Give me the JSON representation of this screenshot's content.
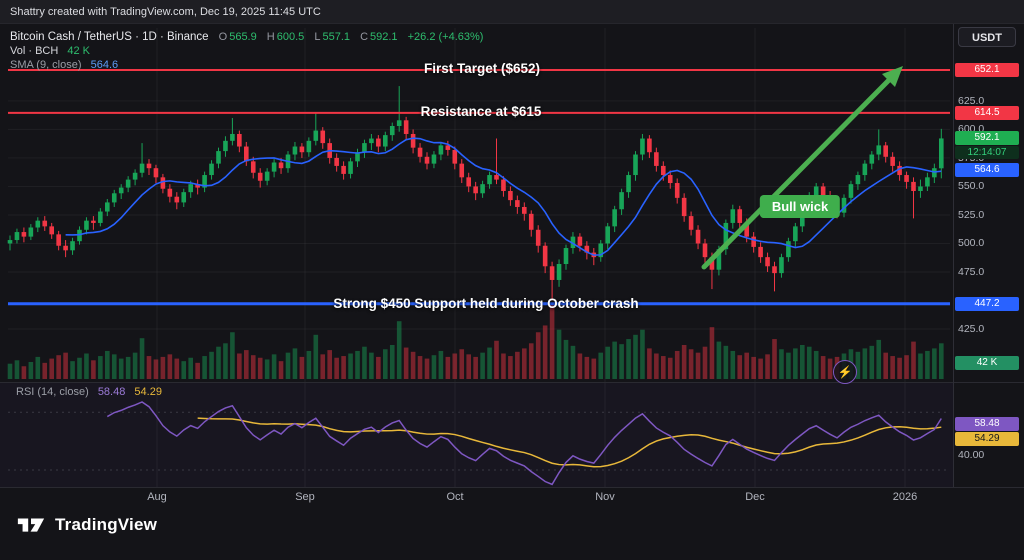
{
  "top_bar": {
    "attribution": "Shattry created with TradingView.com, Dec 19, 2025 11:45 UTC"
  },
  "header": {
    "symbol": "Bitcoin Cash / TetherUS · 1D · Binance",
    "ohlc": [
      {
        "label": "O",
        "value": "565.9"
      },
      {
        "label": "H",
        "value": "600.5"
      },
      {
        "label": "L",
        "value": "557.1"
      },
      {
        "label": "C",
        "value": "592.1"
      }
    ],
    "change": "+26.2 (+4.63%)",
    "vol_label": "Vol · BCH",
    "vol_value": "42 K",
    "sma_label": "SMA (9, close)",
    "sma_value": "564.6",
    "currency_button": "USDT"
  },
  "annotations": {
    "first_target": "First Target ($652)",
    "resistance": "Resistance at $615",
    "support": "Strong $450 Support held during October crash",
    "bull_wick": "Bull wick"
  },
  "price_scale": {
    "target_pill": "652.1",
    "resistance_pill": "614.5",
    "last_pill": "592.1",
    "countdown": "12:14:07",
    "sma_pill": "564.6",
    "support_pill": "447.2",
    "volume_pill": "42 K"
  },
  "rsi_pane": {
    "label": "RSI (14, close)",
    "rsi_value": "58.48",
    "ma_value": "54.29",
    "rsi_pill": "58.48",
    "ma_pill": "54.29",
    "scale_tick": "40.00"
  },
  "time_axis": {
    "labels": [
      "Aug",
      "Sep",
      "Oct",
      "Nov",
      "Dec",
      "2026"
    ]
  },
  "footer": {
    "brand": "TradingView"
  },
  "colors": {
    "up": "#18a558",
    "down": "#f23645",
    "sma": "#2962ff",
    "rsi": "#7e57c2",
    "rsi_ma": "#e8b83a",
    "arrow": "#4caf50",
    "level_red": "#f23645",
    "level_blue": "#2962ff"
  },
  "chart_data": {
    "type": "candlestick",
    "title": "Bitcoin Cash / TetherUS · 1D · Binance",
    "interval": "1D",
    "exchange": "Binance",
    "last": {
      "open": 565.9,
      "high": 600.5,
      "low": 557.1,
      "close": 592.1,
      "change": 26.2,
      "change_pct": 4.63
    },
    "price_axis": {
      "ticks": [
        625,
        600,
        575,
        550,
        525,
        500,
        475,
        425
      ],
      "visible_range": [
        410,
        688
      ]
    },
    "time_axis_labels": [
      "Aug",
      "Sep",
      "Oct",
      "Nov",
      "Dec",
      "2026"
    ],
    "levels": [
      {
        "price": 652.1,
        "color": "#f23645",
        "weight": 2,
        "label": "First Target ($652)"
      },
      {
        "price": 614.5,
        "color": "#f23645",
        "weight": 2,
        "label": "Resistance at $615"
      },
      {
        "price": 447.2,
        "color": "#2962ff",
        "weight": 3,
        "label": "Strong $450 Support held during October crash"
      }
    ],
    "sma": {
      "period": 9,
      "source": "close",
      "last": 564.6
    },
    "rsi": {
      "period": 14,
      "source": "close",
      "last": 58.48,
      "ma_last": 54.29,
      "bands": [
        70,
        30
      ],
      "scale_tick": 40
    },
    "volume": {
      "last_k": 42,
      "unit": "K"
    },
    "candles": [
      [
        500,
        507,
        494,
        503
      ],
      [
        503,
        513,
        500,
        510
      ],
      [
        510,
        514,
        501,
        506
      ],
      [
        506,
        517,
        503,
        514
      ],
      [
        514,
        523,
        510,
        520
      ],
      [
        520,
        524,
        511,
        515
      ],
      [
        515,
        518,
        504,
        508
      ],
      [
        508,
        511,
        494,
        498
      ],
      [
        498,
        503,
        488,
        494
      ],
      [
        494,
        505,
        490,
        502
      ],
      [
        502,
        515,
        499,
        512
      ],
      [
        512,
        523,
        508,
        520
      ],
      [
        520,
        524,
        512,
        518
      ],
      [
        518,
        531,
        515,
        528
      ],
      [
        528,
        539,
        524,
        536
      ],
      [
        536,
        547,
        532,
        544
      ],
      [
        544,
        552,
        539,
        549
      ],
      [
        549,
        559,
        545,
        556
      ],
      [
        556,
        565,
        551,
        562
      ],
      [
        562,
        588,
        558,
        570
      ],
      [
        570,
        574,
        560,
        566
      ],
      [
        566,
        569,
        553,
        558
      ],
      [
        558,
        561,
        544,
        548
      ],
      [
        548,
        552,
        536,
        541
      ],
      [
        541,
        545,
        530,
        536
      ],
      [
        536,
        548,
        532,
        545
      ],
      [
        545,
        555,
        540,
        552
      ],
      [
        552,
        556,
        543,
        549
      ],
      [
        549,
        563,
        545,
        560
      ],
      [
        560,
        573,
        556,
        570
      ],
      [
        570,
        584,
        566,
        581
      ],
      [
        581,
        594,
        576,
        590
      ],
      [
        590,
        610,
        586,
        596
      ],
      [
        596,
        599,
        580,
        585
      ],
      [
        585,
        589,
        568,
        572
      ],
      [
        572,
        576,
        557,
        562
      ],
      [
        562,
        566,
        549,
        555
      ],
      [
        555,
        566,
        551,
        563
      ],
      [
        563,
        574,
        558,
        571
      ],
      [
        571,
        575,
        561,
        566
      ],
      [
        566,
        581,
        562,
        578
      ],
      [
        578,
        589,
        573,
        585
      ],
      [
        585,
        588,
        575,
        580
      ],
      [
        580,
        593,
        576,
        590
      ],
      [
        590,
        614,
        586,
        599
      ],
      [
        599,
        602,
        583,
        588
      ],
      [
        588,
        592,
        570,
        575
      ],
      [
        575,
        579,
        563,
        568
      ],
      [
        568,
        572,
        556,
        561
      ],
      [
        561,
        575,
        557,
        572
      ],
      [
        572,
        583,
        567,
        580
      ],
      [
        580,
        591,
        575,
        588
      ],
      [
        588,
        596,
        582,
        592
      ],
      [
        592,
        595,
        580,
        585
      ],
      [
        585,
        598,
        581,
        595
      ],
      [
        595,
        606,
        590,
        603
      ],
      [
        603,
        638,
        598,
        608
      ],
      [
        608,
        611,
        591,
        596
      ],
      [
        596,
        600,
        579,
        584
      ],
      [
        584,
        588,
        571,
        576
      ],
      [
        576,
        580,
        565,
        570
      ],
      [
        570,
        581,
        566,
        578
      ],
      [
        578,
        589,
        573,
        586
      ],
      [
        586,
        590,
        577,
        582
      ],
      [
        582,
        585,
        565,
        570
      ],
      [
        570,
        574,
        553,
        558
      ],
      [
        558,
        562,
        545,
        550
      ],
      [
        550,
        554,
        538,
        544
      ],
      [
        544,
        555,
        540,
        552
      ],
      [
        552,
        563,
        548,
        560
      ],
      [
        560,
        592,
        552,
        556
      ],
      [
        556,
        559,
        541,
        546
      ],
      [
        546,
        550,
        533,
        538
      ],
      [
        538,
        542,
        526,
        532
      ],
      [
        532,
        536,
        520,
        526
      ],
      [
        526,
        529,
        506,
        512
      ],
      [
        512,
        516,
        492,
        498
      ],
      [
        498,
        501,
        474,
        480
      ],
      [
        480,
        484,
        450,
        468
      ],
      [
        468,
        486,
        462,
        482
      ],
      [
        482,
        499,
        477,
        496
      ],
      [
        496,
        510,
        491,
        506
      ],
      [
        506,
        509,
        493,
        498
      ],
      [
        498,
        502,
        486,
        492
      ],
      [
        492,
        496,
        481,
        488
      ],
      [
        488,
        503,
        484,
        500
      ],
      [
        500,
        518,
        495,
        515
      ],
      [
        515,
        533,
        510,
        530
      ],
      [
        530,
        548,
        525,
        545
      ],
      [
        545,
        563,
        540,
        560
      ],
      [
        560,
        581,
        555,
        578
      ],
      [
        578,
        596,
        573,
        592
      ],
      [
        592,
        595,
        575,
        580
      ],
      [
        580,
        584,
        563,
        568
      ],
      [
        568,
        572,
        555,
        560
      ],
      [
        560,
        564,
        548,
        553
      ],
      [
        553,
        557,
        535,
        540
      ],
      [
        540,
        544,
        519,
        524
      ],
      [
        524,
        528,
        507,
        512
      ],
      [
        512,
        516,
        495,
        500
      ],
      [
        500,
        504,
        483,
        488
      ],
      [
        488,
        492,
        460,
        477
      ],
      [
        477,
        498,
        472,
        495
      ],
      [
        495,
        521,
        490,
        518
      ],
      [
        518,
        534,
        513,
        530
      ],
      [
        530,
        533,
        513,
        518
      ],
      [
        518,
        522,
        501,
        506
      ],
      [
        506,
        510,
        492,
        497
      ],
      [
        497,
        501,
        483,
        488
      ],
      [
        488,
        492,
        475,
        480
      ],
      [
        480,
        484,
        458,
        474
      ],
      [
        474,
        491,
        470,
        488
      ],
      [
        488,
        505,
        484,
        502
      ],
      [
        502,
        518,
        497,
        515
      ],
      [
        515,
        531,
        510,
        528
      ],
      [
        528,
        545,
        523,
        542
      ],
      [
        542,
        553,
        537,
        550
      ],
      [
        550,
        553,
        537,
        542
      ],
      [
        542,
        546,
        529,
        534
      ],
      [
        534,
        538,
        522,
        527
      ],
      [
        527,
        543,
        523,
        540
      ],
      [
        540,
        555,
        535,
        552
      ],
      [
        552,
        563,
        547,
        560
      ],
      [
        560,
        573,
        555,
        570
      ],
      [
        570,
        581,
        565,
        578
      ],
      [
        578,
        600,
        573,
        586
      ],
      [
        586,
        589,
        571,
        576
      ],
      [
        576,
        580,
        563,
        568
      ],
      [
        568,
        572,
        555,
        560
      ],
      [
        560,
        563,
        548,
        554
      ],
      [
        554,
        558,
        522,
        546
      ],
      [
        546,
        556,
        540,
        550
      ],
      [
        550,
        562,
        546,
        558
      ],
      [
        558,
        570,
        553,
        566
      ],
      [
        565.9,
        600.5,
        557.1,
        592.1
      ]
    ],
    "volumes_k": [
      18,
      22,
      15,
      20,
      26,
      19,
      24,
      28,
      31,
      21,
      25,
      30,
      22,
      27,
      33,
      29,
      24,
      26,
      31,
      48,
      27,
      23,
      26,
      29,
      24,
      21,
      25,
      19,
      27,
      32,
      38,
      42,
      55,
      30,
      34,
      28,
      25,
      23,
      29,
      21,
      31,
      36,
      26,
      33,
      52,
      29,
      34,
      25,
      27,
      30,
      33,
      38,
      31,
      26,
      35,
      40,
      68,
      37,
      32,
      27,
      24,
      28,
      33,
      26,
      30,
      35,
      29,
      26,
      31,
      37,
      45,
      30,
      27,
      32,
      36,
      42,
      55,
      63,
      88,
      58,
      46,
      39,
      30,
      26,
      24,
      31,
      38,
      44,
      41,
      47,
      52,
      58,
      36,
      30,
      27,
      25,
      33,
      40,
      35,
      31,
      38,
      61,
      44,
      39,
      33,
      28,
      31,
      26,
      24,
      29,
      47,
      35,
      31,
      36,
      40,
      38,
      33,
      27,
      24,
      26,
      30,
      35,
      32,
      36,
      39,
      46,
      31,
      27,
      25,
      28,
      44,
      30,
      33,
      36,
      42
    ]
  }
}
